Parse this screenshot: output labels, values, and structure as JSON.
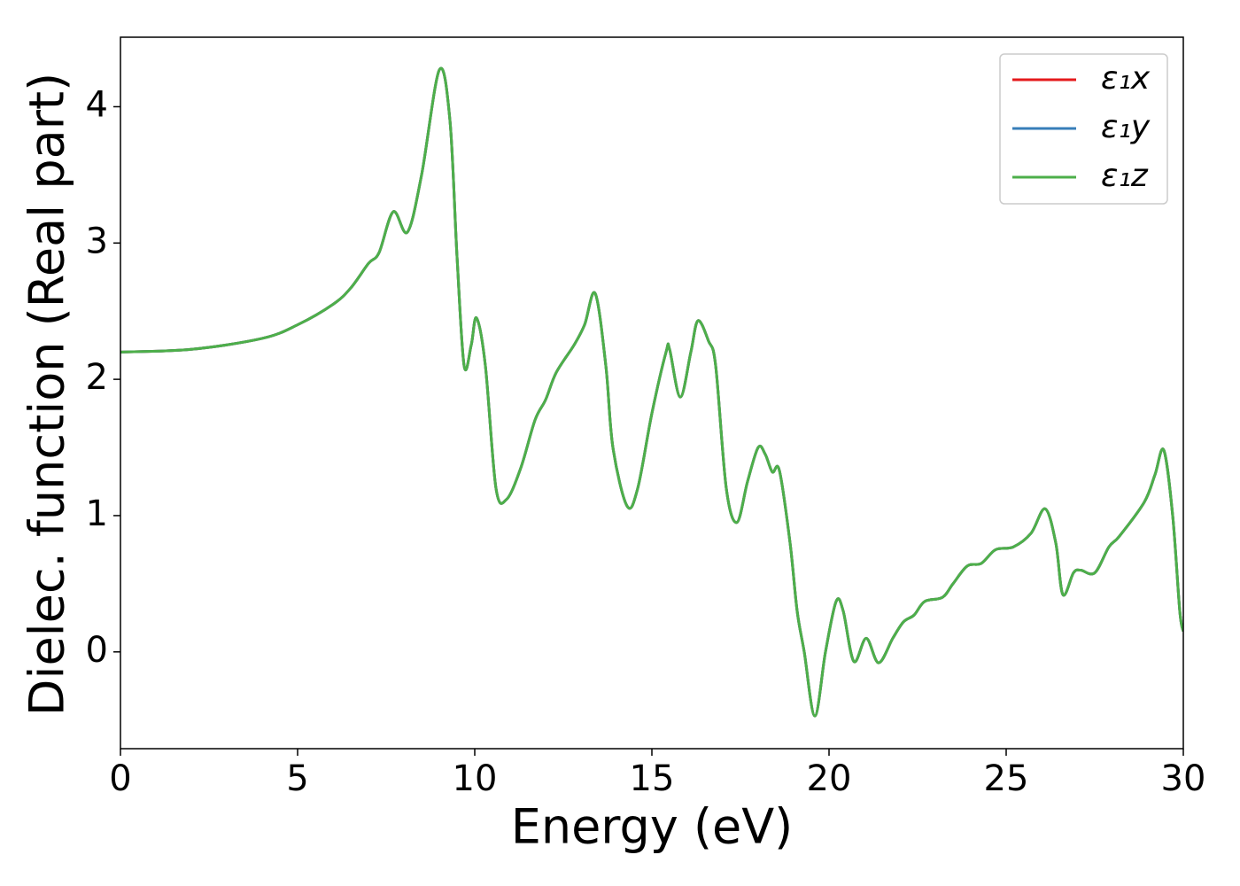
{
  "chart_data": {
    "type": "line",
    "xlabel": "Energy (eV)",
    "ylabel": "Dielec. function (Real part)",
    "x": [
      0,
      2,
      4,
      5,
      6,
      6.5,
      7,
      7.3,
      7.7,
      8.1,
      8.5,
      9.0,
      9.3,
      9.5,
      9.7,
      9.9,
      10.05,
      10.3,
      10.6,
      10.9,
      11.3,
      11.7,
      12.0,
      12.3,
      12.8,
      13.1,
      13.4,
      13.7,
      13.9,
      14.3,
      14.6,
      15.0,
      15.4,
      15.5,
      15.8,
      16.1,
      16.3,
      16.6,
      16.8,
      17.1,
      17.4,
      17.7,
      18.0,
      18.2,
      18.4,
      18.6,
      18.9,
      19.1,
      19.3,
      19.6,
      19.9,
      20.2,
      20.4,
      20.7,
      21.05,
      21.4,
      21.8,
      22.1,
      22.4,
      22.7,
      23.2,
      23.5,
      23.9,
      24.3,
      24.7,
      25.2,
      25.7,
      26.1,
      26.4,
      26.6,
      26.9,
      27.1,
      27.5,
      27.9,
      28.2,
      28.9,
      29.2,
      29.45,
      29.7,
      29.9,
      30.0
    ],
    "series": [
      {
        "name": "ε₁x",
        "color": "#e41a1c",
        "values": [
          2.2,
          2.22,
          2.3,
          2.4,
          2.55,
          2.67,
          2.85,
          2.93,
          3.23,
          3.08,
          3.5,
          4.27,
          3.9,
          2.9,
          2.1,
          2.25,
          2.45,
          2.1,
          1.2,
          1.12,
          1.35,
          1.7,
          1.85,
          2.05,
          2.25,
          2.4,
          2.63,
          2.1,
          1.5,
          1.07,
          1.2,
          1.75,
          2.2,
          2.22,
          1.87,
          2.2,
          2.43,
          2.28,
          2.1,
          1.2,
          0.95,
          1.25,
          1.5,
          1.45,
          1.32,
          1.33,
          0.8,
          0.3,
          0.0,
          -0.47,
          0.0,
          0.37,
          0.3,
          -0.07,
          0.1,
          -0.08,
          0.1,
          0.22,
          0.27,
          0.37,
          0.4,
          0.5,
          0.63,
          0.65,
          0.75,
          0.77,
          0.87,
          1.05,
          0.8,
          0.42,
          0.58,
          0.6,
          0.58,
          0.77,
          0.85,
          1.1,
          1.3,
          1.48,
          1.0,
          0.3,
          0.15
        ]
      },
      {
        "name": "ε₁y",
        "color": "#377eb8",
        "values": [
          2.2,
          2.22,
          2.3,
          2.4,
          2.55,
          2.67,
          2.85,
          2.93,
          3.23,
          3.08,
          3.5,
          4.27,
          3.9,
          2.9,
          2.1,
          2.25,
          2.45,
          2.1,
          1.2,
          1.12,
          1.35,
          1.7,
          1.85,
          2.05,
          2.25,
          2.4,
          2.63,
          2.1,
          1.5,
          1.07,
          1.2,
          1.75,
          2.2,
          2.22,
          1.87,
          2.2,
          2.43,
          2.28,
          2.1,
          1.2,
          0.95,
          1.25,
          1.5,
          1.45,
          1.32,
          1.33,
          0.8,
          0.3,
          0.0,
          -0.47,
          0.0,
          0.37,
          0.3,
          -0.07,
          0.1,
          -0.08,
          0.1,
          0.22,
          0.27,
          0.37,
          0.4,
          0.5,
          0.63,
          0.65,
          0.75,
          0.77,
          0.87,
          1.05,
          0.8,
          0.42,
          0.58,
          0.6,
          0.58,
          0.77,
          0.85,
          1.1,
          1.3,
          1.48,
          1.0,
          0.3,
          0.15
        ]
      },
      {
        "name": "ε₁z",
        "color": "#4daf4a",
        "values": [
          2.2,
          2.22,
          2.3,
          2.4,
          2.55,
          2.67,
          2.85,
          2.93,
          3.23,
          3.08,
          3.5,
          4.27,
          3.9,
          2.9,
          2.1,
          2.25,
          2.45,
          2.1,
          1.2,
          1.12,
          1.35,
          1.7,
          1.85,
          2.05,
          2.25,
          2.4,
          2.63,
          2.1,
          1.5,
          1.07,
          1.2,
          1.75,
          2.2,
          2.22,
          1.87,
          2.2,
          2.43,
          2.28,
          2.1,
          1.2,
          0.95,
          1.25,
          1.5,
          1.45,
          1.32,
          1.33,
          0.8,
          0.3,
          0.0,
          -0.47,
          0.0,
          0.37,
          0.3,
          -0.07,
          0.1,
          -0.08,
          0.1,
          0.22,
          0.27,
          0.37,
          0.4,
          0.5,
          0.63,
          0.65,
          0.75,
          0.77,
          0.87,
          1.05,
          0.8,
          0.42,
          0.58,
          0.6,
          0.58,
          0.77,
          0.85,
          1.1,
          1.3,
          1.48,
          1.0,
          0.3,
          0.15
        ]
      }
    ],
    "xlim": [
      0,
      30
    ],
    "xticks": [
      0,
      5,
      10,
      15,
      20,
      25,
      30
    ],
    "ylim": [
      -0.71,
      4.51
    ],
    "yticks": [
      0,
      1,
      2,
      3,
      4
    ],
    "legend": "upper right",
    "grid": false
  }
}
